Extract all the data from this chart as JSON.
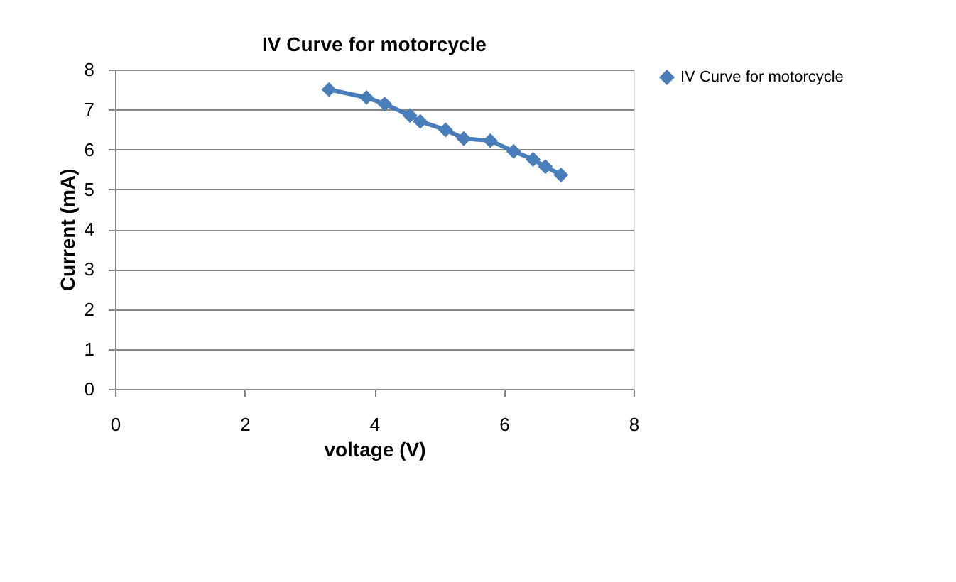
{
  "chart_data": {
    "type": "line",
    "title": "IV Curve for motorcycle",
    "xlabel": "voltage (V)",
    "ylabel": "Current (mA)",
    "x": [
      3.3,
      3.88,
      4.16,
      4.55,
      4.71,
      5.1,
      5.38,
      5.79,
      6.15,
      6.45,
      6.64,
      6.88
    ],
    "series": [
      {
        "name": "IV Curve for motorcycle",
        "color": "#4a7ebb",
        "values": [
          7.5,
          7.3,
          7.14,
          6.85,
          6.7,
          6.49,
          6.27,
          6.22,
          5.95,
          5.75,
          5.57,
          5.36
        ]
      }
    ],
    "xlim": [
      0,
      8
    ],
    "xticks": [
      0,
      2,
      4,
      6,
      8
    ],
    "ylim": [
      0,
      8
    ],
    "yticks": [
      0,
      1,
      2,
      3,
      4,
      5,
      6,
      7,
      8
    ],
    "grid": "y",
    "legend": "right",
    "marker": "diamond",
    "line_style": "solid"
  }
}
